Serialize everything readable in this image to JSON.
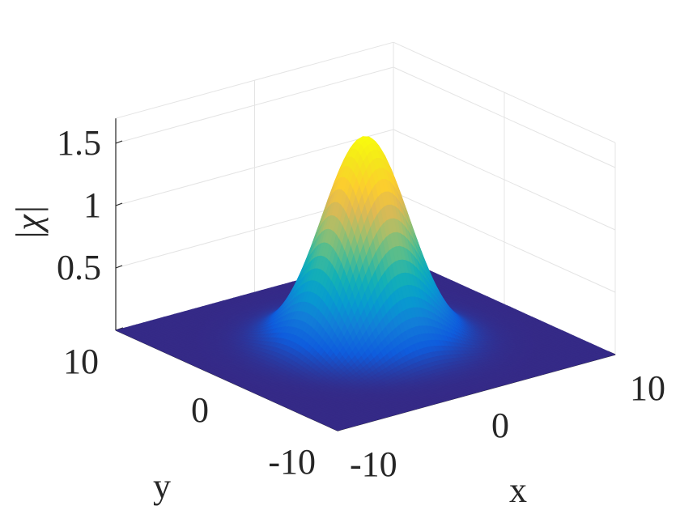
{
  "chart_data": {
    "type": "surface",
    "function": "gaussian",
    "peak": 1.65,
    "center": [
      0,
      0
    ],
    "xlabel": "x",
    "ylabel": "y",
    "zlabel": "|χ|",
    "xlim": [
      -10,
      10
    ],
    "ylim": [
      -10,
      10
    ],
    "zlim": [
      0,
      1.7
    ],
    "xticks": [
      -10,
      0,
      10
    ],
    "yticks": [
      -10,
      0,
      10
    ],
    "zticks": [
      0.5,
      1,
      1.5
    ],
    "xtick_labels": [
      "-10",
      "0",
      "10"
    ],
    "ytick_labels": [
      "-10",
      "0",
      "10"
    ],
    "ztick_labels": [
      "0.5",
      "1",
      "1.5"
    ],
    "colormap": "parula",
    "grid": true
  }
}
